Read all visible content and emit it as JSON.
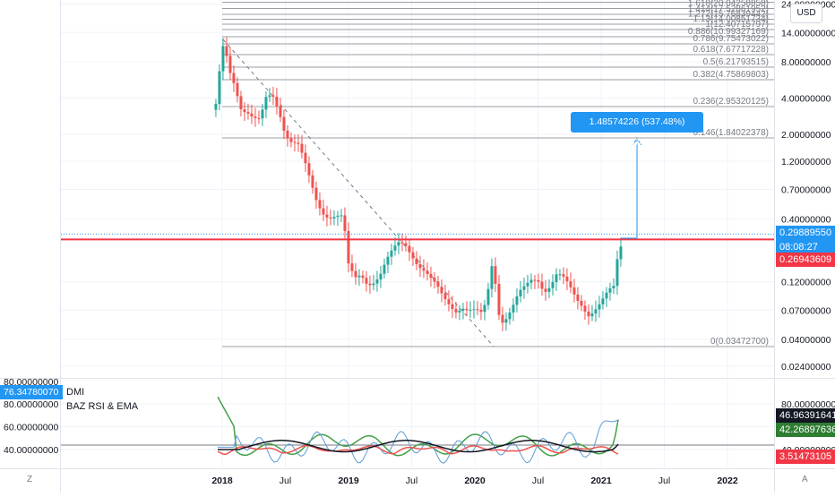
{
  "main_prices": {
    "labels": [
      "24.00000000",
      "14.00000000",
      "8.00000000",
      "4.00000000",
      "2.00000000",
      "1.20000000",
      "0.70000000",
      "0.40000000",
      "0.12000000",
      "0.07000000",
      "0.04000000",
      "0.02400000"
    ]
  },
  "time_labels": [
    "2018",
    "Jul",
    "2019",
    "Jul",
    "2020",
    "Jul",
    "2021",
    "Jul",
    "2022"
  ],
  "fib_labels": [
    "2(24.76755961)",
    "1.618(20.04258858)",
    "1.414(17.52861952)",
    "1.272(15.76839442)",
    "1.13(14.00851734)",
    "1(12.40715797)",
    "0.886(10.99327169)",
    "0.786(9.75473022)",
    "0.618(7.67717228)",
    "0.5(6.21793515)",
    "0.382(4.75869803)",
    "0.236(2.95320125)",
    "0.146(1.84022378)",
    "0(0.03472700)"
  ],
  "price_tags": {
    "last": "0.29889550",
    "countdown": "08:08:27",
    "line_level": "0.26943609"
  },
  "measure_callout": "1.48574226 (537.48%) 148574226",
  "currency": "USD",
  "corner_left": "Z",
  "corner_right": "A",
  "indicator": {
    "dmi_label": "DMI",
    "rsi_label": "BAZ RSI & EMA",
    "left_value": "76.34780070",
    "left_top_partial": "80.00000000",
    "axis_labels": [
      "80.00000000",
      "60.00000000",
      "40.00000000"
    ],
    "tags": [
      "46.96391641",
      "42.26897636",
      "3.51473105"
    ]
  },
  "colors": {
    "candle_up": "#26a69a",
    "candle_down": "#ef5350",
    "horizontal_line": "#f23645",
    "fib_line": "#787b86",
    "measure": "#2196f3",
    "tag_black": "#131722",
    "tag_green": "#2e7d32",
    "tag_red": "#f23645",
    "dmi_blue": "#2962ff"
  },
  "chart_data": {
    "type": "candlestick",
    "scale": "log",
    "timeframe": "weekly",
    "y_ticks": [
      24,
      14,
      8,
      4,
      2,
      1.2,
      0.7,
      0.4,
      0.12,
      0.07,
      0.04,
      0.024
    ],
    "horizontal_level": 0.26943609,
    "last_price": 0.2988955,
    "fibonacci_levels": [
      {
        "ratio": 2,
        "price": 24.76755961
      },
      {
        "ratio": 1.618,
        "price": 20.04258858
      },
      {
        "ratio": 1.414,
        "price": 17.52861952
      },
      {
        "ratio": 1.272,
        "price": 15.76839442
      },
      {
        "ratio": 1.13,
        "price": 14.00851734
      },
      {
        "ratio": 1,
        "price": 12.40715797
      },
      {
        "ratio": 0.886,
        "price": 10.99327169
      },
      {
        "ratio": 0.786,
        "price": 9.75473022
      },
      {
        "ratio": 0.618,
        "price": 7.67717228
      },
      {
        "ratio": 0.5,
        "price": 6.21793515
      },
      {
        "ratio": 0.382,
        "price": 4.75869803
      },
      {
        "ratio": 0.236,
        "price": 2.95320125
      },
      {
        "ratio": 0.146,
        "price": 1.84022378
      },
      {
        "ratio": 0,
        "price": 0.034727
      }
    ],
    "indicator_y_ticks": [
      80,
      60,
      40
    ]
  }
}
